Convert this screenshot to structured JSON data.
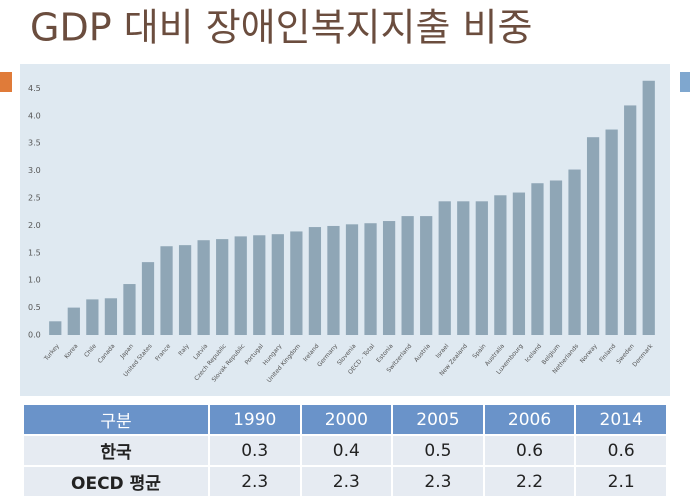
{
  "chart_data": {
    "type": "bar",
    "title": "GDP 대비 장애인복지지출 비중",
    "categories": [
      "Turkey",
      "Korea",
      "Chile",
      "Canada",
      "Japan",
      "United States",
      "France",
      "Italy",
      "Latvia",
      "Czech Republic",
      "Slovak Republic",
      "Portugal",
      "Hungary",
      "United Kingdom",
      "Ireland",
      "Germany",
      "Slovenia",
      "OECD - Total",
      "Estonia",
      "Switzerland",
      "Austria",
      "Israel",
      "New Zealand",
      "Spain",
      "Australia",
      "Luxembourg",
      "Iceland",
      "Belgium",
      "Netherlands",
      "Norway",
      "Finland",
      "Sweden",
      "Denmark"
    ],
    "values": [
      0.25,
      0.5,
      0.65,
      0.67,
      0.93,
      1.33,
      1.62,
      1.64,
      1.73,
      1.75,
      1.8,
      1.82,
      1.84,
      1.89,
      1.97,
      1.99,
      2.02,
      2.04,
      2.08,
      2.17,
      2.17,
      2.44,
      2.44,
      2.44,
      2.55,
      2.6,
      2.77,
      2.82,
      3.02,
      3.61,
      3.75,
      4.19,
      4.64
    ],
    "color": "#8fa6b6",
    "ylim": [
      0,
      4.8
    ],
    "yticks": [
      {
        "value": 0,
        "label": "0.0"
      },
      0.5,
      {
        "value": 1,
        "label": "1.0"
      },
      1.5,
      {
        "value": 2,
        "label": "2.0"
      },
      2.5,
      {
        "value": 3,
        "label": "3.0"
      },
      3.5,
      {
        "value": 4,
        "label": "4.0"
      },
      4.5
    ],
    "grid": false
  },
  "table": {
    "header": [
      "구분",
      "1990",
      "2000",
      "2005",
      "2006",
      "2014"
    ],
    "rows": [
      [
        "한국",
        0.3,
        0.4,
        0.5,
        0.6,
        0.6
      ],
      [
        "OECD 평균",
        2.3,
        2.3,
        2.3,
        2.2,
        2.1
      ]
    ]
  }
}
